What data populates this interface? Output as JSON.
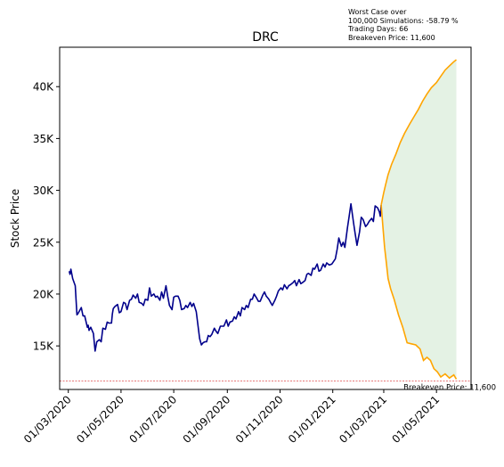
{
  "chart_data": {
    "type": "line",
    "title": "DRC",
    "xlabel": "",
    "ylabel": "Stock Price",
    "x_range": [
      "2020-02-20",
      "2021-06-10"
    ],
    "ylim": [
      10800,
      43800
    ],
    "grid": false,
    "y_ticks": [
      {
        "value": 15000,
        "label": "15K"
      },
      {
        "value": 20000,
        "label": "20K"
      },
      {
        "value": 25000,
        "label": "25K"
      },
      {
        "value": 30000,
        "label": "30K"
      },
      {
        "value": 35000,
        "label": "35K"
      },
      {
        "value": 40000,
        "label": "40K"
      }
    ],
    "x_ticks": [
      {
        "value": "2020-03-01",
        "label": "01/03/2020"
      },
      {
        "value": "2020-05-01",
        "label": "01/05/2020"
      },
      {
        "value": "2020-07-01",
        "label": "01/07/2020"
      },
      {
        "value": "2020-09-01",
        "label": "01/09/2020"
      },
      {
        "value": "2020-11-01",
        "label": "01/11/2020"
      },
      {
        "value": "2021-01-01",
        "label": "01/01/2021"
      },
      {
        "value": "2021-03-01",
        "label": "01/03/2021"
      },
      {
        "value": "2021-05-01",
        "label": "01/05/2021"
      }
    ],
    "series": [
      {
        "color": "#00008b",
        "points": [
          [
            "2020-03-02",
            22200
          ],
          [
            "2020-03-03",
            21900
          ],
          [
            "2020-03-04",
            22400
          ],
          [
            "2020-03-06",
            21500
          ],
          [
            "2020-03-09",
            20800
          ],
          [
            "2020-03-11",
            18000
          ],
          [
            "2020-03-12",
            18100
          ],
          [
            "2020-03-16",
            18700
          ],
          [
            "2020-03-18",
            17900
          ],
          [
            "2020-03-20",
            17900
          ],
          [
            "2020-03-23",
            16800
          ],
          [
            "2020-03-24",
            17000
          ],
          [
            "2020-03-25",
            16500
          ],
          [
            "2020-03-27",
            16800
          ],
          [
            "2020-03-30",
            16200
          ],
          [
            "2020-04-01",
            14500
          ],
          [
            "2020-04-03",
            15400
          ],
          [
            "2020-04-06",
            15600
          ],
          [
            "2020-04-08",
            15400
          ],
          [
            "2020-04-10",
            16700
          ],
          [
            "2020-04-13",
            16600
          ],
          [
            "2020-04-15",
            17300
          ],
          [
            "2020-04-17",
            17200
          ],
          [
            "2020-04-20",
            17200
          ],
          [
            "2020-04-21",
            18100
          ],
          [
            "2020-04-22",
            18600
          ],
          [
            "2020-04-24",
            18800
          ],
          [
            "2020-04-27",
            19000
          ],
          [
            "2020-04-29",
            18200
          ],
          [
            "2020-05-01",
            18300
          ],
          [
            "2020-05-04",
            19200
          ],
          [
            "2020-05-06",
            19100
          ],
          [
            "2020-05-08",
            18500
          ],
          [
            "2020-05-11",
            19400
          ],
          [
            "2020-05-13",
            19500
          ],
          [
            "2020-05-15",
            19900
          ],
          [
            "2020-05-18",
            19600
          ],
          [
            "2020-05-20",
            20000
          ],
          [
            "2020-05-22",
            19200
          ],
          [
            "2020-05-25",
            19100
          ],
          [
            "2020-05-27",
            18900
          ],
          [
            "2020-05-29",
            19500
          ],
          [
            "2020-06-01",
            19400
          ],
          [
            "2020-06-03",
            20600
          ],
          [
            "2020-06-05",
            19800
          ],
          [
            "2020-06-08",
            20000
          ],
          [
            "2020-06-10",
            19700
          ],
          [
            "2020-06-12",
            19800
          ],
          [
            "2020-06-15",
            19400
          ],
          [
            "2020-06-17",
            20200
          ],
          [
            "2020-06-19",
            19600
          ],
          [
            "2020-06-22",
            20800
          ],
          [
            "2020-06-24",
            19800
          ],
          [
            "2020-06-26",
            18900
          ],
          [
            "2020-06-29",
            18500
          ],
          [
            "2020-07-01",
            19700
          ],
          [
            "2020-07-03",
            19800
          ],
          [
            "2020-07-06",
            19800
          ],
          [
            "2020-07-08",
            19400
          ],
          [
            "2020-07-10",
            18500
          ],
          [
            "2020-07-13",
            18600
          ],
          [
            "2020-07-15",
            18900
          ],
          [
            "2020-07-17",
            18700
          ],
          [
            "2020-07-20",
            19200
          ],
          [
            "2020-07-22",
            18800
          ],
          [
            "2020-07-24",
            19100
          ],
          [
            "2020-07-27",
            18300
          ],
          [
            "2020-07-29",
            17000
          ],
          [
            "2020-07-31",
            15700
          ],
          [
            "2020-08-02",
            15100
          ],
          [
            "2020-08-04",
            15300
          ],
          [
            "2020-08-06",
            15400
          ],
          [
            "2020-08-08",
            15400
          ],
          [
            "2020-08-10",
            16000
          ],
          [
            "2020-08-12",
            15900
          ],
          [
            "2020-08-14",
            16100
          ],
          [
            "2020-08-17",
            16700
          ],
          [
            "2020-08-19",
            16400
          ],
          [
            "2020-08-21",
            16200
          ],
          [
            "2020-08-24",
            16900
          ],
          [
            "2020-08-26",
            16900
          ],
          [
            "2020-08-28",
            16900
          ],
          [
            "2020-08-31",
            17500
          ],
          [
            "2020-09-02",
            16900
          ],
          [
            "2020-09-04",
            17300
          ],
          [
            "2020-09-07",
            17400
          ],
          [
            "2020-09-09",
            17800
          ],
          [
            "2020-09-11",
            17600
          ],
          [
            "2020-09-14",
            18300
          ],
          [
            "2020-09-16",
            17900
          ],
          [
            "2020-09-18",
            18700
          ],
          [
            "2020-09-21",
            18500
          ],
          [
            "2020-09-23",
            18900
          ],
          [
            "2020-09-25",
            18700
          ],
          [
            "2020-09-28",
            19500
          ],
          [
            "2020-09-30",
            19500
          ],
          [
            "2020-10-02",
            20000
          ],
          [
            "2020-10-05",
            19600
          ],
          [
            "2020-10-07",
            19300
          ],
          [
            "2020-10-09",
            19300
          ],
          [
            "2020-10-12",
            19900
          ],
          [
            "2020-10-14",
            20200
          ],
          [
            "2020-10-16",
            19800
          ],
          [
            "2020-10-19",
            19500
          ],
          [
            "2020-10-21",
            19200
          ],
          [
            "2020-10-23",
            18900
          ],
          [
            "2020-10-26",
            19400
          ],
          [
            "2020-10-28",
            19800
          ],
          [
            "2020-10-30",
            20300
          ],
          [
            "2020-11-02",
            20600
          ],
          [
            "2020-11-04",
            20400
          ],
          [
            "2020-11-06",
            20900
          ],
          [
            "2020-11-09",
            20500
          ],
          [
            "2020-11-11",
            20800
          ],
          [
            "2020-11-13",
            20900
          ],
          [
            "2020-11-16",
            21100
          ],
          [
            "2020-11-18",
            21300
          ],
          [
            "2020-11-20",
            20800
          ],
          [
            "2020-11-23",
            21400
          ],
          [
            "2020-11-25",
            21000
          ],
          [
            "2020-11-27",
            21100
          ],
          [
            "2020-11-30",
            21300
          ],
          [
            "2020-12-02",
            21900
          ],
          [
            "2020-12-04",
            22000
          ],
          [
            "2020-12-07",
            21800
          ],
          [
            "2020-12-09",
            22500
          ],
          [
            "2020-12-11",
            22400
          ],
          [
            "2020-12-14",
            22900
          ],
          [
            "2020-12-16",
            22200
          ],
          [
            "2020-12-18",
            22300
          ],
          [
            "2020-12-21",
            22900
          ],
          [
            "2020-12-23",
            22600
          ],
          [
            "2020-12-25",
            23000
          ],
          [
            "2020-12-28",
            22800
          ],
          [
            "2020-12-31",
            22900
          ],
          [
            "2021-01-04",
            23400
          ],
          [
            "2021-01-06",
            24300
          ],
          [
            "2021-01-08",
            25400
          ],
          [
            "2021-01-11",
            24600
          ],
          [
            "2021-01-13",
            25000
          ],
          [
            "2021-01-15",
            24500
          ],
          [
            "2021-01-18",
            26400
          ],
          [
            "2021-01-20",
            27500
          ],
          [
            "2021-01-22",
            28700
          ],
          [
            "2021-01-25",
            26900
          ],
          [
            "2021-01-27",
            25800
          ],
          [
            "2021-01-29",
            24700
          ],
          [
            "2021-02-01",
            26000
          ],
          [
            "2021-02-03",
            27400
          ],
          [
            "2021-02-05",
            27200
          ],
          [
            "2021-02-08",
            26500
          ],
          [
            "2021-02-10",
            26700
          ],
          [
            "2021-02-12",
            27000
          ],
          [
            "2021-02-15",
            27300
          ],
          [
            "2021-02-17",
            27000
          ],
          [
            "2021-02-19",
            28500
          ],
          [
            "2021-02-22",
            28300
          ],
          [
            "2021-02-24",
            27900
          ],
          [
            "2021-02-25",
            27500
          ],
          [
            "2021-02-26",
            28600
          ]
        ]
      }
    ],
    "simulation_bands": {
      "color": "#ffa500",
      "fill_color": "#e4f2e4",
      "upper": [
        [
          "2021-02-26",
          28600
        ],
        [
          "2021-03-01",
          29800
        ],
        [
          "2021-03-03",
          30500
        ],
        [
          "2021-03-06",
          31500
        ],
        [
          "2021-03-10",
          32500
        ],
        [
          "2021-03-15",
          33500
        ],
        [
          "2021-03-20",
          34600
        ],
        [
          "2021-03-25",
          35500
        ],
        [
          "2021-03-31",
          36400
        ],
        [
          "2021-04-05",
          37100
        ],
        [
          "2021-04-10",
          37800
        ],
        [
          "2021-04-15",
          38600
        ],
        [
          "2021-04-20",
          39300
        ],
        [
          "2021-04-25",
          39900
        ],
        [
          "2021-05-01",
          40400
        ],
        [
          "2021-05-06",
          41000
        ],
        [
          "2021-05-11",
          41600
        ],
        [
          "2021-05-16",
          42000
        ],
        [
          "2021-05-21",
          42400
        ],
        [
          "2021-05-24",
          42600
        ]
      ],
      "lower": [
        [
          "2021-02-26",
          28600
        ],
        [
          "2021-02-28",
          26500
        ],
        [
          "2021-03-02",
          24500
        ],
        [
          "2021-03-04",
          23000
        ],
        [
          "2021-03-06",
          21500
        ],
        [
          "2021-03-09",
          20500
        ],
        [
          "2021-03-13",
          19500
        ],
        [
          "2021-03-18",
          18000
        ],
        [
          "2021-03-23",
          16800
        ],
        [
          "2021-03-28",
          15300
        ],
        [
          "2021-04-02",
          15200
        ],
        [
          "2021-04-07",
          15100
        ],
        [
          "2021-04-12",
          14700
        ],
        [
          "2021-04-16",
          13600
        ],
        [
          "2021-04-20",
          13900
        ],
        [
          "2021-04-24",
          13600
        ],
        [
          "2021-04-28",
          12800
        ],
        [
          "2021-05-02",
          12500
        ],
        [
          "2021-05-06",
          12000
        ],
        [
          "2021-05-11",
          12300
        ],
        [
          "2021-05-16",
          11900
        ],
        [
          "2021-05-21",
          12200
        ],
        [
          "2021-05-24",
          11800
        ]
      ]
    },
    "breakeven": {
      "value": 11600,
      "label": "Breakeven Price: 11,600",
      "color": "#d62728"
    },
    "annotation": {
      "lines": [
        "Worst Case over",
        "100,000 Simulations: -58.79 %",
        "Trading Days: 66",
        "Breakeven Price: 11,600"
      ]
    }
  }
}
